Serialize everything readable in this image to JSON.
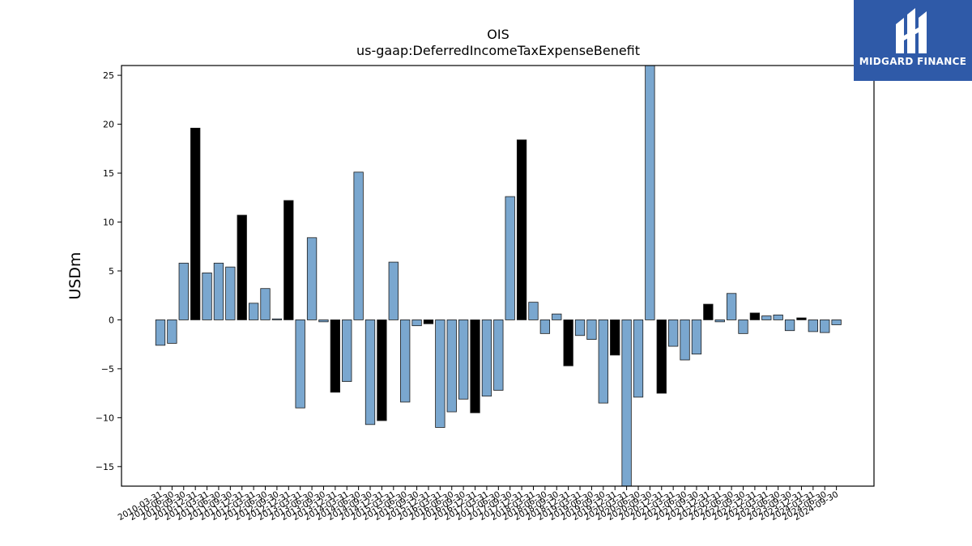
{
  "brand": {
    "name": "MIDGARD FINANCE",
    "bg_color": "#2f5aa8"
  },
  "chart_data": {
    "type": "bar",
    "title": "OIS",
    "subtitle": "us-gaap:DeferredIncomeTaxExpenseBenefit",
    "xlabel": "",
    "ylabel": "USDm",
    "ylim": [
      -17,
      26
    ],
    "yticks": [
      -15,
      -10,
      -5,
      0,
      5,
      10,
      15,
      20,
      25
    ],
    "grid": false,
    "colors": {
      "quarterly": "#7aa7cf",
      "annual": "#000000",
      "edge": "#1a1a1a"
    },
    "categories": [
      "2010-03-31",
      "2010-06-30",
      "2010-09-30",
      "2010-12-31",
      "2011-03-31",
      "2011-06-30",
      "2011-09-30",
      "2011-12-31",
      "2012-03-31",
      "2012-06-30",
      "2012-09-30",
      "2012-12-31",
      "2013-03-31",
      "2013-06-30",
      "2013-09-30",
      "2013-12-31",
      "2014-03-31",
      "2014-06-30",
      "2014-09-30",
      "2014-12-31",
      "2015-03-31",
      "2015-06-30",
      "2015-09-30",
      "2015-12-31",
      "2016-03-31",
      "2016-06-30",
      "2016-09-30",
      "2016-12-31",
      "2017-03-31",
      "2017-06-30",
      "2017-09-30",
      "2017-12-31",
      "2018-03-31",
      "2018-06-30",
      "2018-09-30",
      "2018-12-31",
      "2019-03-31",
      "2019-06-30",
      "2019-09-30",
      "2019-12-31",
      "2020-03-31",
      "2020-06-30",
      "2020-09-30",
      "2020-12-31",
      "2021-03-31",
      "2021-06-30",
      "2021-09-30",
      "2021-12-31",
      "2022-03-31",
      "2022-06-30",
      "2022-09-30",
      "2022-12-31",
      "2023-03-31",
      "2023-06-30",
      "2023-09-30",
      "2023-12-31",
      "2024-03-31",
      "2024-06-30",
      "2024-09-30"
    ],
    "values": [
      -2.6,
      -2.4,
      5.8,
      19.6,
      4.8,
      5.8,
      5.4,
      10.7,
      1.7,
      3.2,
      0.1,
      12.2,
      -9.0,
      8.4,
      -0.2,
      -7.4,
      -6.3,
      15.1,
      -10.7,
      -10.3,
      5.9,
      -8.4,
      -0.6,
      -0.4,
      -11.0,
      -9.4,
      -8.1,
      -9.5,
      -7.8,
      -7.2,
      12.6,
      18.4,
      1.8,
      -1.4,
      0.6,
      -4.7,
      -1.6,
      -2.0,
      -8.5,
      -3.6,
      -17.0,
      -7.9,
      26.0,
      -7.5,
      -2.7,
      -4.1,
      -3.5,
      1.6,
      -0.2,
      2.7,
      -1.4,
      0.7,
      0.4,
      0.5,
      -1.1,
      0.2,
      -1.2,
      -1.3,
      -0.5
    ],
    "annual": [
      false,
      false,
      false,
      true,
      false,
      false,
      false,
      true,
      false,
      false,
      false,
      true,
      false,
      false,
      false,
      true,
      false,
      false,
      false,
      true,
      false,
      false,
      false,
      true,
      false,
      false,
      false,
      true,
      false,
      false,
      false,
      true,
      false,
      false,
      false,
      true,
      false,
      false,
      false,
      true,
      false,
      false,
      false,
      true,
      false,
      false,
      false,
      true,
      false,
      false,
      false,
      true,
      false,
      false,
      false,
      true,
      false,
      false,
      false
    ]
  }
}
